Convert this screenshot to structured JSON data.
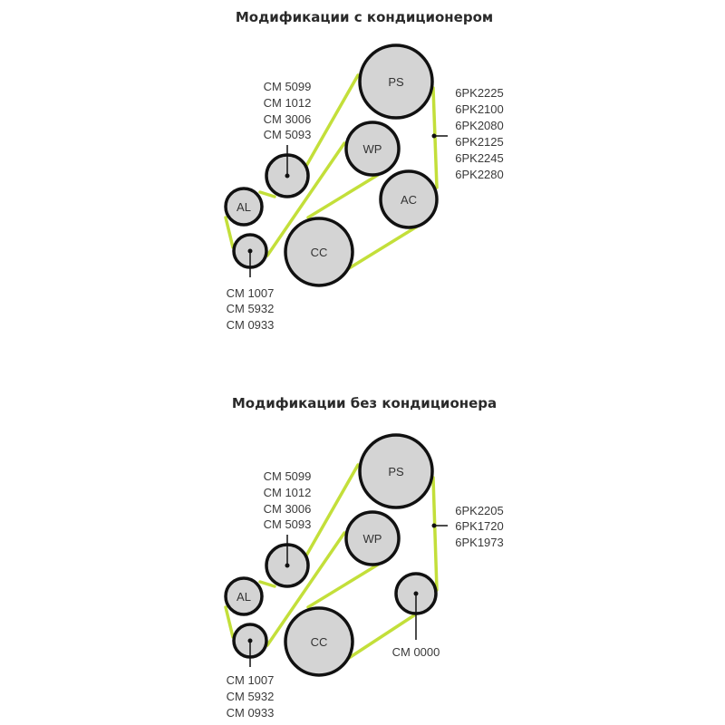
{
  "diagrams": [
    {
      "title": "Модификации с кондиционером",
      "pulleys": {
        "ps": "PS",
        "wp": "WP",
        "ac": "AC",
        "cc": "CC",
        "al": "AL"
      },
      "tensioner_parts": [
        "CM 5099",
        "CM 1012",
        "CM 3006",
        "CM 5093"
      ],
      "idler_parts": [
        "CM 1007",
        "CM 5932",
        "CM 0933"
      ],
      "belt_parts": [
        "6PK2225",
        "6PK2100",
        "6PK2080",
        "6PK2125",
        "6PK2245",
        "6PK2280"
      ]
    },
    {
      "title": "Модификации без кондиционера",
      "pulleys": {
        "ps": "PS",
        "wp": "WP",
        "cc": "CC",
        "al": "AL"
      },
      "tensioner_parts": [
        "CM 5099",
        "CM 1012",
        "CM 3006",
        "CM 5093"
      ],
      "idler_parts": [
        "CM 1007",
        "CM 5932",
        "CM 0933"
      ],
      "belt_parts": [
        "6PK2205",
        "6PK1720",
        "6PK1973"
      ],
      "extra_idler_parts": [
        "CM 0000"
      ]
    }
  ],
  "colors": {
    "belt": "#c3df3a",
    "pulley_fill": "#d4d4d4",
    "outline": "#111111"
  }
}
